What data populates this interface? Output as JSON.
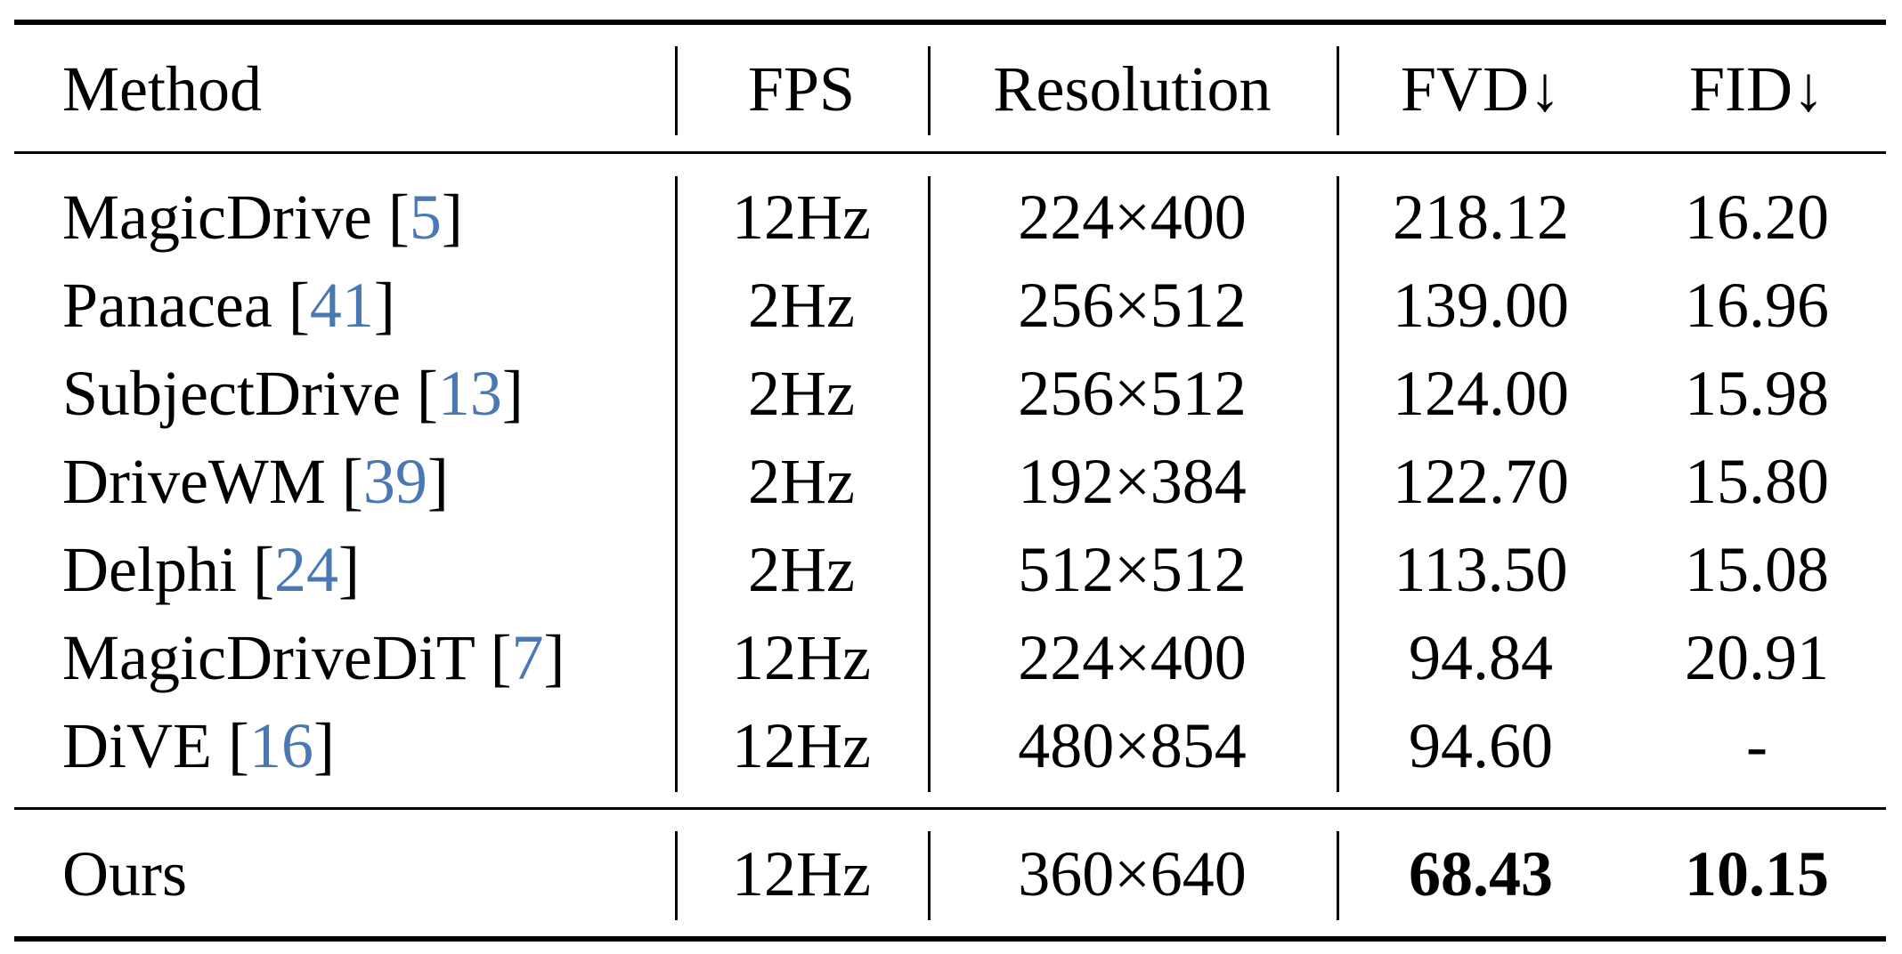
{
  "table": {
    "columns": [
      "Method",
      "FPS",
      "Resolution",
      "FVD↓",
      "FID↓"
    ],
    "rows": [
      {
        "method": "MagicDrive",
        "cite": "5",
        "fps": "12Hz",
        "resolution": "224×400",
        "fvd": "218.12",
        "fid": "16.20"
      },
      {
        "method": "Panacea",
        "cite": "41",
        "fps": "2Hz",
        "resolution": "256×512",
        "fvd": "139.00",
        "fid": "16.96"
      },
      {
        "method": "SubjectDrive",
        "cite": "13",
        "fps": "2Hz",
        "resolution": "256×512",
        "fvd": "124.00",
        "fid": "15.98"
      },
      {
        "method": "DriveWM",
        "cite": "39",
        "fps": "2Hz",
        "resolution": "192×384",
        "fvd": "122.70",
        "fid": "15.80"
      },
      {
        "method": "Delphi",
        "cite": "24",
        "fps": "2Hz",
        "resolution": "512×512",
        "fvd": "113.50",
        "fid": "15.08"
      },
      {
        "method": "MagicDriveDiT",
        "cite": "7",
        "fps": "12Hz",
        "resolution": "224×400",
        "fvd": "94.84",
        "fid": "20.91"
      },
      {
        "method": "DiVE",
        "cite": "16",
        "fps": "12Hz",
        "resolution": "480×854",
        "fvd": "94.60",
        "fid": "-"
      }
    ],
    "ours": {
      "method": "Ours",
      "fps": "12Hz",
      "resolution": "360×640",
      "fvd": "68.43",
      "fid": "10.15"
    }
  },
  "colors": {
    "citation": "#4a78b3",
    "text": "#000000",
    "background": "#ffffff"
  }
}
